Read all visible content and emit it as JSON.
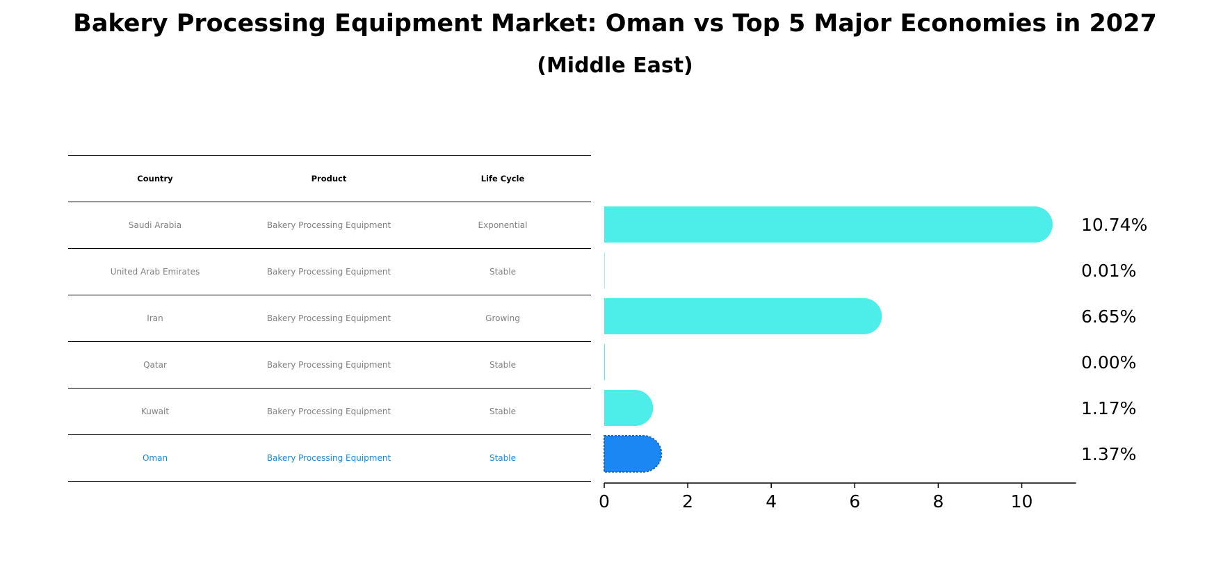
{
  "title": "Bakery Processing Equipment Market: Oman vs Top 5 Major Economies in 2027",
  "subtitle": "(Middle East)",
  "table": {
    "headers": [
      "Country",
      "Product",
      "Life Cycle"
    ],
    "rows": [
      [
        "Saudi Arabia",
        "Bakery Processing Equipment",
        "Exponential"
      ],
      [
        "United Arab Emirates",
        "Bakery Processing Equipment",
        "Stable"
      ],
      [
        "Iran",
        "Bakery Processing Equipment",
        "Growing"
      ],
      [
        "Qatar",
        "Bakery Processing Equipment",
        "Stable"
      ],
      [
        "Kuwait",
        "Bakery Processing Equipment",
        "Stable"
      ],
      [
        "Oman",
        "Bakery Processing Equipment",
        "Stable"
      ]
    ]
  },
  "chart_data": {
    "type": "bar",
    "orientation": "horizontal",
    "categories": [
      "Saudi Arabia",
      "United Arab Emirates",
      "Iran",
      "Qatar",
      "Kuwait",
      "Oman"
    ],
    "values": [
      10.74,
      0.01,
      6.65,
      0.0,
      1.17,
      1.37
    ],
    "labels": [
      "10.74%",
      "0.01%",
      "6.65%",
      "0.00%",
      "1.17%",
      "1.37%"
    ],
    "highlight": "Oman",
    "xlim": [
      0,
      11.3
    ],
    "xticks": [
      0,
      2,
      4,
      6,
      8,
      10
    ],
    "colors": {
      "default": "#4deeea",
      "highlight": "#1a87f2",
      "highlight_text": "#1a87e0",
      "muted_text": "#808080"
    }
  }
}
